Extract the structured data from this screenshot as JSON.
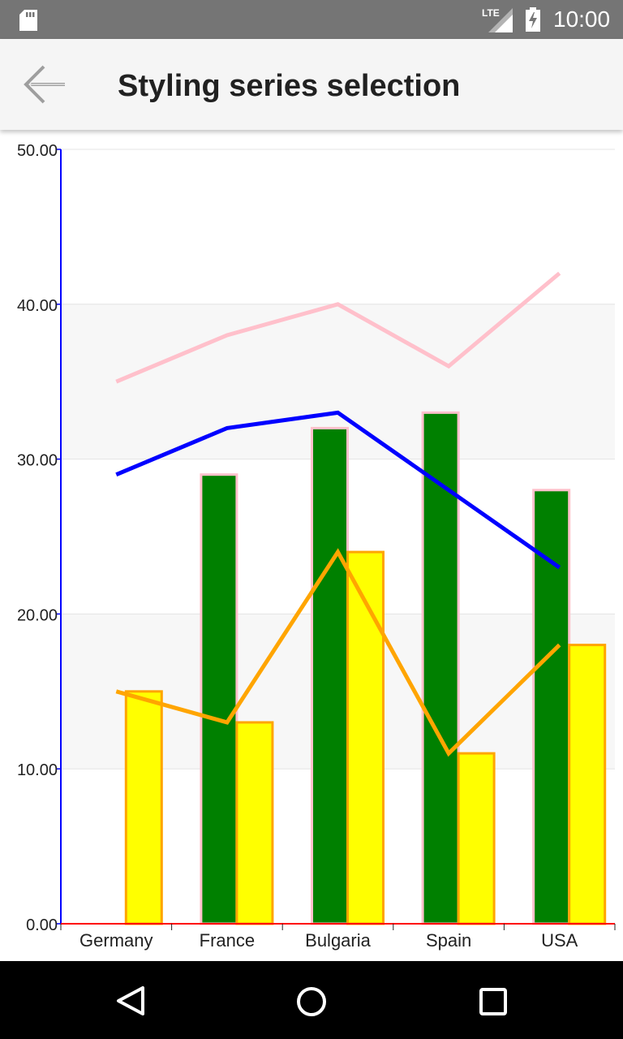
{
  "status_bar": {
    "time": "10:00",
    "network": "LTE",
    "icons": [
      "sd-card-icon",
      "signal-icon",
      "battery-charging-icon"
    ]
  },
  "app_bar": {
    "title": "Styling series selection",
    "back_icon": "arrow-left-icon"
  },
  "nav_bar": {
    "icons": [
      "back-triangle-icon",
      "home-circle-icon",
      "recents-square-icon"
    ]
  },
  "colors": {
    "status_bar": "#757575",
    "app_bar": "#f5f5f5",
    "plot_band": "#f7f7f7",
    "y_axis": "#0000ff",
    "x_axis": "#ff0000"
  },
  "chart_data": {
    "type": "bar",
    "categories": [
      "Germany",
      "France",
      "Bulgaria",
      "Spain",
      "USA"
    ],
    "ylim": [
      0,
      50
    ],
    "yticks": [
      "0.00",
      "10.00",
      "20.00",
      "30.00",
      "40.00",
      "50.00"
    ],
    "grid": true,
    "series": [
      {
        "kind": "bar",
        "fill": "#008000",
        "stroke": "#ffc0cb",
        "values": [
          null,
          29,
          32,
          33,
          28
        ]
      },
      {
        "kind": "bar",
        "fill": "#ffff00",
        "stroke": "#ffa500",
        "values": [
          15,
          13,
          24,
          11,
          18
        ]
      },
      {
        "kind": "line",
        "stroke": "#ffc0cb",
        "values": [
          35,
          38,
          40,
          36,
          42
        ]
      },
      {
        "kind": "line",
        "stroke": "#0000ff",
        "values": [
          29,
          32,
          33,
          28,
          23
        ]
      },
      {
        "kind": "line",
        "stroke": "#ffa500",
        "values": [
          15,
          13,
          24,
          11,
          18
        ]
      }
    ]
  }
}
